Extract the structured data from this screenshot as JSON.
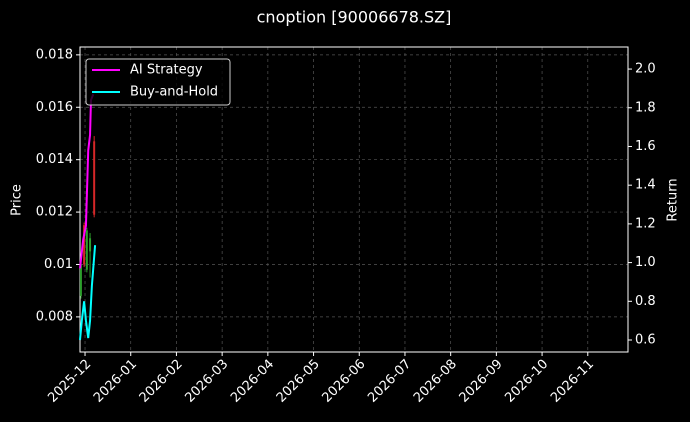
{
  "chart_data": {
    "type": "candlestick-line",
    "title": "cnoption [90006678.SZ]",
    "y_label": "Price",
    "y2_label": "Return",
    "xlim": [
      -0.11,
      11.88
    ],
    "xticks": [
      {
        "value": 0,
        "label": "2025-12"
      },
      {
        "value": 1,
        "label": "2026-01"
      },
      {
        "value": 2,
        "label": "2026-02"
      },
      {
        "value": 3,
        "label": "2026-03"
      },
      {
        "value": 4,
        "label": "2026-04"
      },
      {
        "value": 5,
        "label": "2026-05"
      },
      {
        "value": 6,
        "label": "2026-06"
      },
      {
        "value": 7,
        "label": "2026-07"
      },
      {
        "value": 8,
        "label": "2026-08"
      },
      {
        "value": 9,
        "label": "2026-09"
      },
      {
        "value": 10,
        "label": "2026-10"
      },
      {
        "value": 11,
        "label": "2026-11"
      }
    ],
    "ylim": [
      0.00666,
      0.0183
    ],
    "yticks": [
      0.008,
      0.01,
      0.012,
      0.014,
      0.016,
      0.018
    ],
    "y2lim": [
      0.538,
      2.114
    ],
    "y2ticks": [
      0.6,
      0.8,
      1.0,
      1.2,
      1.4,
      1.6,
      1.8,
      2.0
    ],
    "grid": true,
    "legend": "upper left",
    "ohlc": {
      "x": [
        -0.09,
        -0.02,
        0.04,
        0.11,
        0.2
      ],
      "open": [
        0.0088,
        0.0115,
        0.0098,
        0.0105,
        0.0147
      ],
      "high": [
        0.0101,
        0.0116,
        0.0114,
        0.0112,
        0.0149
      ],
      "low": [
        0.0087,
        0.0099,
        0.0097,
        0.0095,
        0.0118
      ],
      "close": [
        0.01,
        0.01,
        0.0113,
        0.011,
        0.0119
      ],
      "up_color": "#2ca02c",
      "down_color": "#d62728"
    },
    "series": [
      {
        "name": "AI Strategy",
        "color": "#ff00ff",
        "axis": "y2",
        "x": [
          -0.11,
          -0.04,
          0.02,
          0.07,
          0.11,
          0.13,
          0.18
        ],
        "values": [
          0.97,
          1.12,
          1.19,
          1.58,
          1.66,
          1.84,
          1.87
        ]
      },
      {
        "name": "Buy-and-Hold",
        "color": "#00ffff",
        "axis": "y2",
        "x": [
          -0.11,
          -0.07,
          -0.02,
          0.02,
          0.07,
          0.11,
          0.15,
          0.22
        ],
        "values": [
          0.6,
          0.7,
          0.8,
          0.7,
          0.61,
          0.7,
          0.88,
          1.09
        ]
      }
    ]
  }
}
